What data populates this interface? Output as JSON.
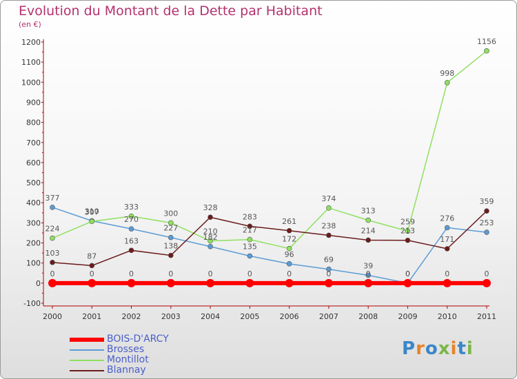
{
  "header": {
    "title": "Evolution du Montant de la Dette par Habitant",
    "subtitle": "(en €)"
  },
  "logo": {
    "text": "Proxiti",
    "colors": [
      "#3a86c8",
      "#e8842a",
      "#3a86c8",
      "#7ab648",
      "#e8842a",
      "#3a86c8",
      "#7ab648"
    ]
  },
  "chart_data": {
    "type": "line",
    "x": [
      "2000",
      "2001",
      "2002",
      "2003",
      "2004",
      "2005",
      "2006",
      "2007",
      "2008",
      "2009",
      "2010",
      "2011"
    ],
    "ylim": [
      -100,
      1200
    ],
    "yticks": [
      -100,
      0,
      100,
      200,
      300,
      400,
      500,
      600,
      700,
      800,
      900,
      1000,
      1100,
      1200
    ],
    "grid": false,
    "legend_position": "bottom-left",
    "series": [
      {
        "name": "BOIS-D'ARCY",
        "color": "#ff0000",
        "width": 6,
        "values": [
          0,
          0,
          0,
          0,
          0,
          0,
          0,
          0,
          0,
          0,
          0,
          0
        ]
      },
      {
        "name": "Brosses",
        "color": "#5b9bd5",
        "width": 1.5,
        "values": [
          377,
          310,
          270,
          227,
          182,
          135,
          96,
          69,
          39,
          0,
          276,
          253
        ]
      },
      {
        "name": "Montillot",
        "color": "#8fe060",
        "width": 1.5,
        "values": [
          224,
          307,
          333,
          300,
          210,
          217,
          172,
          374,
          313,
          259,
          998,
          1156
        ]
      },
      {
        "name": "Blannay",
        "color": "#6b1b1b",
        "width": 1.5,
        "values": [
          103,
          87,
          163,
          138,
          328,
          283,
          261,
          238,
          214,
          213,
          171,
          359
        ]
      }
    ]
  }
}
